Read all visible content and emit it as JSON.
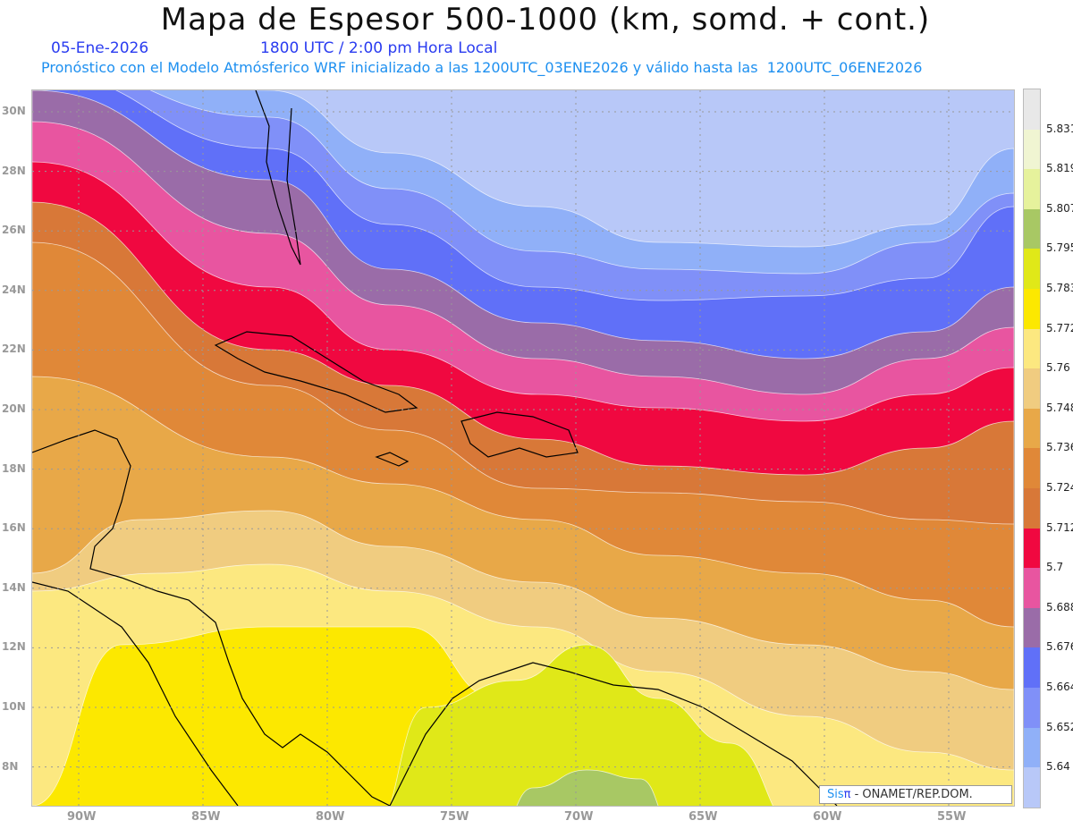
{
  "header": {
    "title": "Mapa de Espesor 500-1000 (km, somd. + cont.)",
    "date": "05-Ene-2026",
    "time": "1800 UTC / 2:00 pm Hora Local",
    "subtitle": "Pronóstico con el Modelo Atmósferico WRF inicializado a las 1200UTC_03ENE2026 y válido hasta las  1200UTC_06ENE2026"
  },
  "map": {
    "lat_labels": [
      "30N",
      "28N",
      "26N",
      "24N",
      "22N",
      "20N",
      "18N",
      "16N",
      "14N",
      "12N",
      "10N",
      "8N"
    ],
    "lon_labels": [
      "90W",
      "85W",
      "80W",
      "75W",
      "70W",
      "65W",
      "60W",
      "55W"
    ]
  },
  "credit": {
    "brand_a": "Sis",
    "brand_b": "π",
    "text": " - ONAMET/REP.DOM."
  },
  "colorbar": {
    "colors": [
      "#e8e8e8",
      "#f0f5d2",
      "#e6f29c",
      "#a8c864",
      "#e0e818",
      "#fce800",
      "#fce880",
      "#f0cc80",
      "#e8a848",
      "#e08838",
      "#d87838",
      "#f00840",
      "#e855a0",
      "#9a6ca8",
      "#6070f8",
      "#8090f8",
      "#90b0f8",
      "#b8c8f8"
    ],
    "labels": [
      "5.831",
      "5.819",
      "5.807",
      "5.795",
      "5.783",
      "5.772",
      "5.76",
      "5.748",
      "5.736",
      "5.724",
      "5.712",
      "5.7",
      "5.688",
      "5.676",
      "5.664",
      "5.652",
      "5.64"
    ]
  }
}
